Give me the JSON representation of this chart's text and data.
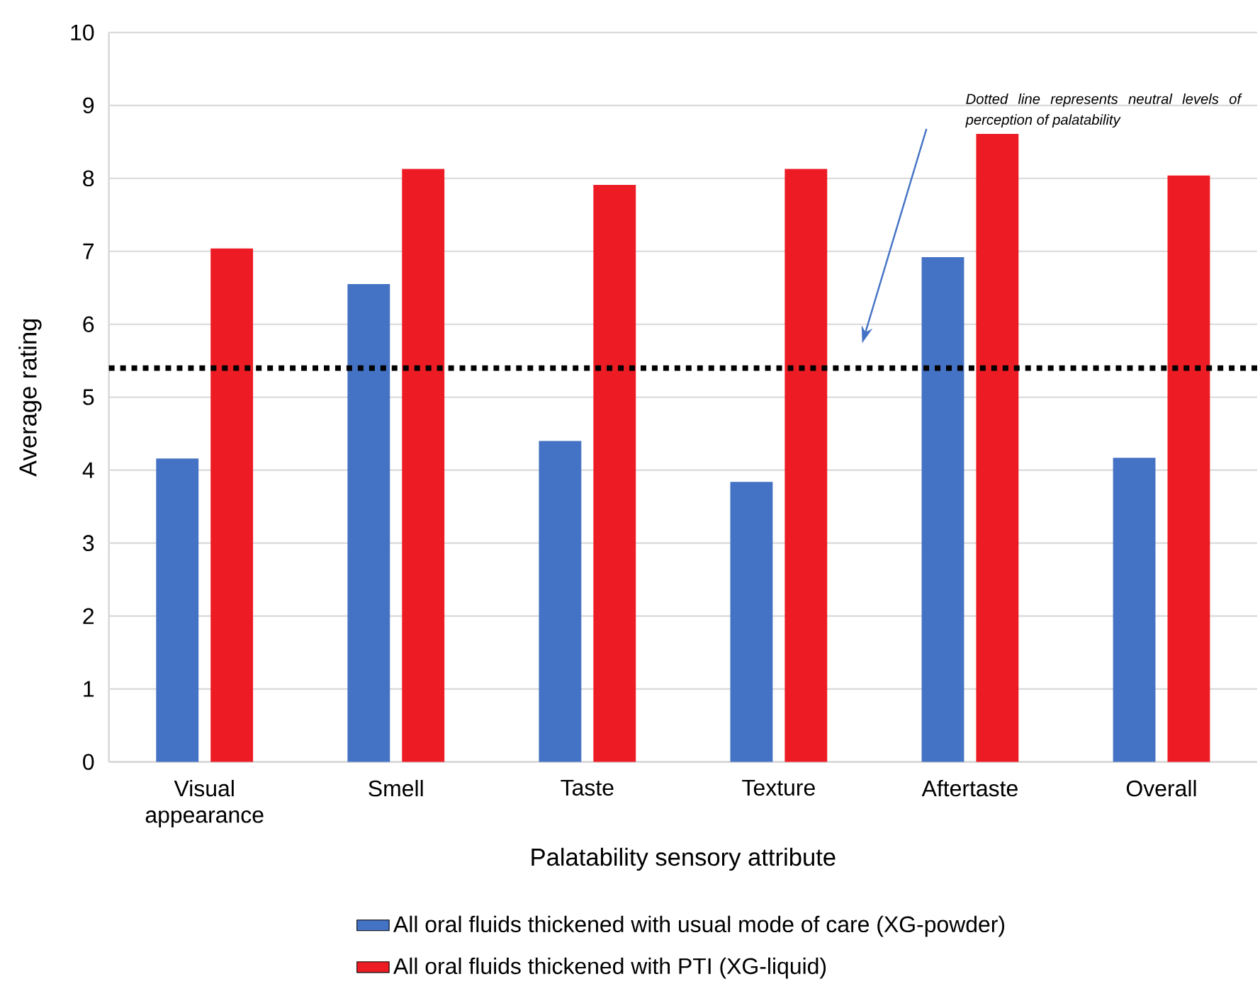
{
  "chart_data": {
    "type": "bar",
    "xlabel": "Palatability sensory attribute",
    "ylabel": "Average rating",
    "categories": [
      "Visual appearance",
      "Smell",
      "Taste",
      "Texture",
      "Aftertaste",
      "Overall"
    ],
    "series": [
      {
        "name": "All oral fluids thickened with usual mode of care (XG-powder)",
        "color": "#4472c4",
        "values": [
          4.16,
          6.55,
          4.4,
          3.84,
          6.92,
          4.17
        ]
      },
      {
        "name": "All oral fluids thickened with PTI (XG-liquid)",
        "color": "#ed1c24",
        "values": [
          7.04,
          8.13,
          7.91,
          8.13,
          8.61,
          8.04
        ]
      }
    ],
    "ylim": [
      0,
      10
    ],
    "yticks": [
      0,
      1,
      2,
      3,
      4,
      5,
      6,
      7,
      8,
      9,
      10
    ],
    "grid": "y",
    "legend": "bottom",
    "ref_lines": [
      {
        "axis": "y",
        "value": 5.4,
        "color": "#000000",
        "line_style": "dotted"
      }
    ],
    "annotations": [
      "Dotted line represents neutral levels of perception of palatability"
    ]
  }
}
